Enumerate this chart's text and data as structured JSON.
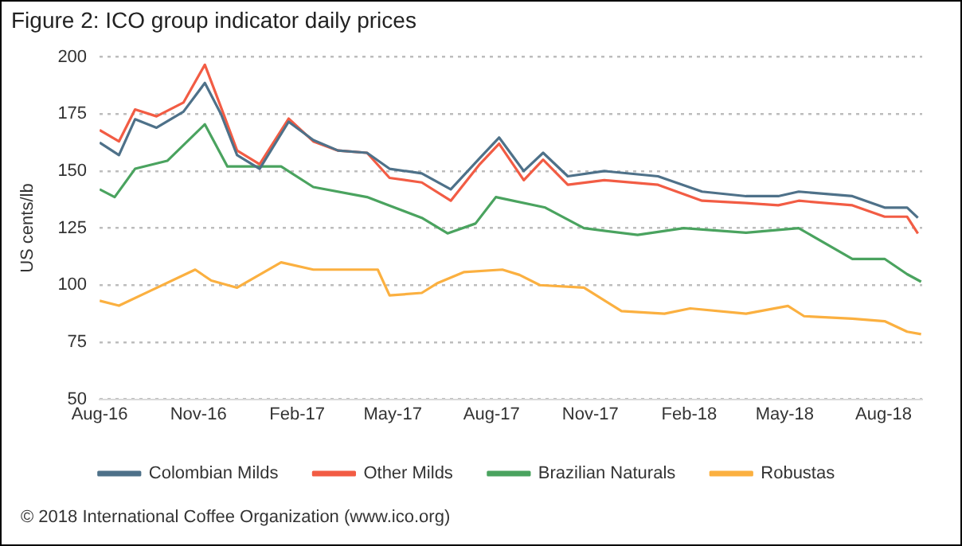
{
  "chart_data": {
    "type": "line",
    "title": "Figure 2: ICO group indicator daily prices",
    "ylabel": "US cents/lb",
    "xlim": [
      "2016-08-01",
      "2018-09-06"
    ],
    "xticks": [
      {
        "value": "2016-08-01",
        "label": "Aug-16"
      },
      {
        "value": "2016-11-01",
        "label": "Nov-16"
      },
      {
        "value": "2017-02-01",
        "label": "Feb-17"
      },
      {
        "value": "2017-05-01",
        "label": "May-17"
      },
      {
        "value": "2017-08-01",
        "label": "Aug-17"
      },
      {
        "value": "2017-11-01",
        "label": "Nov-17"
      },
      {
        "value": "2018-02-01",
        "label": "Feb-18"
      },
      {
        "value": "2018-05-01",
        "label": "May-18"
      },
      {
        "value": "2018-08-01",
        "label": "Aug-18"
      }
    ],
    "ylim": [
      50,
      200
    ],
    "yticks": [
      50,
      75,
      100,
      125,
      150,
      175,
      200
    ],
    "grid": "y",
    "legend": "bottom",
    "marker": "none",
    "line_style": "solid",
    "annotations": [
      "© 2018 International Coffee Organization (www.ico.org)"
    ],
    "series": [
      {
        "name": "Colombian Milds",
        "color": "#4e7189",
        "x": [
          "2016-08-01",
          "2016-08-19",
          "2016-09-03",
          "2016-09-23",
          "2016-10-18",
          "2016-11-07",
          "2016-11-22",
          "2016-12-07",
          "2016-12-28",
          "2017-01-24",
          "2017-02-16",
          "2017-03-11",
          "2017-04-07",
          "2017-04-28",
          "2017-05-28",
          "2017-06-24",
          "2017-07-21",
          "2017-08-08",
          "2017-08-31",
          "2017-09-18",
          "2017-10-11",
          "2017-11-14",
          "2018-01-03",
          "2018-02-13",
          "2018-03-26",
          "2018-04-25",
          "2018-05-14",
          "2018-07-03",
          "2018-08-02",
          "2018-08-23",
          "2018-09-02"
        ],
        "values": [
          162.5,
          157,
          172.7,
          169,
          176,
          188.6,
          175,
          157,
          151,
          171.6,
          163.6,
          159,
          158,
          151,
          149,
          142,
          155.7,
          164.7,
          150,
          158,
          147.7,
          150,
          147.7,
          141,
          139,
          139,
          141,
          139,
          134,
          134,
          129.5
        ]
      },
      {
        "name": "Other Milds",
        "color": "#f25c44",
        "x": [
          "2016-08-01",
          "2016-08-19",
          "2016-09-03",
          "2016-09-23",
          "2016-10-18",
          "2016-11-07",
          "2016-11-22",
          "2016-12-07",
          "2016-12-28",
          "2017-01-24",
          "2017-02-16",
          "2017-03-11",
          "2017-04-07",
          "2017-04-28",
          "2017-05-28",
          "2017-06-24",
          "2017-07-21",
          "2017-08-08",
          "2017-08-31",
          "2017-09-18",
          "2017-10-11",
          "2017-11-14",
          "2018-01-03",
          "2018-02-13",
          "2018-03-26",
          "2018-04-25",
          "2018-05-14",
          "2018-07-03",
          "2018-08-02",
          "2018-08-23",
          "2018-09-02"
        ],
        "values": [
          168,
          163,
          177,
          174,
          180,
          196.6,
          178,
          159,
          153,
          173,
          163,
          159,
          158,
          147,
          145,
          137,
          153,
          162,
          146,
          155,
          144,
          146,
          144,
          137,
          136,
          135,
          137,
          135,
          130,
          130,
          122.6
        ]
      },
      {
        "name": "Brazilian Naturals",
        "color": "#4aa35f",
        "x": [
          "2016-08-01",
          "2016-08-15",
          "2016-09-03",
          "2016-10-03",
          "2016-11-07",
          "2016-11-28",
          "2017-01-17",
          "2017-02-16",
          "2017-04-07",
          "2017-05-28",
          "2017-06-21",
          "2017-07-17",
          "2017-08-05",
          "2017-09-20",
          "2017-10-26",
          "2017-12-15",
          "2018-01-27",
          "2018-03-26",
          "2018-05-14",
          "2018-07-03",
          "2018-08-02",
          "2018-08-23",
          "2018-09-05"
        ],
        "values": [
          142,
          138.6,
          151,
          154.5,
          170.5,
          152,
          152,
          143,
          138.6,
          129.5,
          122.7,
          127,
          138.6,
          134,
          125,
          122,
          125,
          123,
          125,
          111.5,
          111.5,
          104.8,
          101.5
        ]
      },
      {
        "name": "Robustas",
        "color": "#fbb040",
        "x": [
          "2016-08-01",
          "2016-08-19",
          "2016-09-18",
          "2016-10-29",
          "2016-11-13",
          "2016-12-07",
          "2017-01-17",
          "2017-02-16",
          "2017-04-17",
          "2017-04-28",
          "2017-05-28",
          "2017-06-12",
          "2017-07-06",
          "2017-08-11",
          "2017-08-27",
          "2017-09-15",
          "2017-10-26",
          "2017-11-30",
          "2018-01-09",
          "2018-02-02",
          "2018-03-26",
          "2018-05-04",
          "2018-05-19",
          "2018-07-03",
          "2018-08-02",
          "2018-08-23",
          "2018-09-05"
        ],
        "values": [
          93.2,
          91,
          97.7,
          106.8,
          102,
          98.9,
          110,
          106.8,
          106.8,
          95.5,
          96.6,
          101,
          105.7,
          106.8,
          104.5,
          100,
          98.9,
          88.6,
          87.5,
          89.8,
          87.5,
          90.9,
          86.4,
          85.3,
          84.2,
          79.6,
          78.5
        ]
      }
    ]
  }
}
